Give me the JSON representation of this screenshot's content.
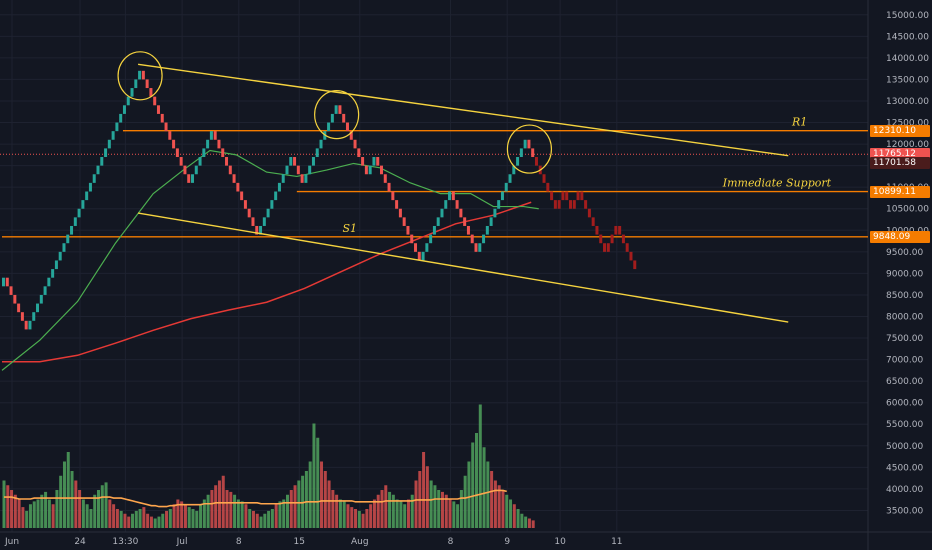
{
  "colors": {
    "background": "#131722",
    "grid": "#1e2230",
    "up": "#26a69a",
    "down": "#ef5350",
    "projection": "#a31d1d",
    "trendline": "#f5d33f",
    "level": "#f57c00",
    "ma_fast": "#4caf50",
    "ma_slow": "#e53935",
    "volume_up": "#4c9a5a",
    "volume_down": "#c94a4a",
    "volume_ma": "#ffa64d"
  },
  "chart_data": {
    "type": "renko-candlestick",
    "yaxis": {
      "min": 3000,
      "max": 15250,
      "ticks": [
        3500,
        4000,
        4500,
        5000,
        5500,
        6000,
        6500,
        7000,
        7500,
        8000,
        8500,
        9000,
        9500,
        10000,
        10500,
        11000,
        11500,
        12000,
        12500,
        13000,
        13500,
        14000,
        14500,
        15000
      ],
      "tick_labels": [
        "3500.00",
        "4000.00",
        "4500.00",
        "5000.00",
        "5500.00",
        "6000.00",
        "6500.00",
        "7000.00",
        "7500.00",
        "8000.00",
        "8500.00",
        "9000.00",
        "9500.00",
        "10000.00",
        "10500.00",
        "11000.00",
        "11500.00",
        "12000.00",
        "12500.00",
        "13000.00",
        "13500.00",
        "14000.00",
        "14500.00",
        "15000.00"
      ]
    },
    "xaxis": {
      "labels": [
        "Jun",
        "24",
        "13:30",
        "Jul",
        "8",
        "15",
        "Aug",
        "8",
        "9",
        "10",
        "11"
      ],
      "label_slots": [
        0,
        18,
        30,
        45,
        60,
        76,
        92,
        116,
        131,
        145,
        160
      ]
    },
    "bricks": [
      [
        8700,
        8900
      ],
      [
        8900,
        8700
      ],
      [
        8700,
        8500
      ],
      [
        8500,
        8300
      ],
      [
        8300,
        8100
      ],
      [
        8100,
        7900
      ],
      [
        7900,
        7700
      ],
      [
        7700,
        7900
      ],
      [
        7900,
        8100
      ],
      [
        8100,
        8300
      ],
      [
        8300,
        8500
      ],
      [
        8500,
        8700
      ],
      [
        8700,
        8900
      ],
      [
        8900,
        9100
      ],
      [
        9100,
        9300
      ],
      [
        9300,
        9500
      ],
      [
        9500,
        9700
      ],
      [
        9700,
        9900
      ],
      [
        9900,
        10100
      ],
      [
        10100,
        10300
      ],
      [
        10300,
        10500
      ],
      [
        10500,
        10700
      ],
      [
        10700,
        10900
      ],
      [
        10900,
        11100
      ],
      [
        11100,
        11300
      ],
      [
        11300,
        11500
      ],
      [
        11500,
        11700
      ],
      [
        11700,
        11900
      ],
      [
        11900,
        12100
      ],
      [
        12100,
        12300
      ],
      [
        12300,
        12500
      ],
      [
        12500,
        12700
      ],
      [
        12700,
        12900
      ],
      [
        12900,
        13100
      ],
      [
        13100,
        13300
      ],
      [
        13300,
        13500
      ],
      [
        13500,
        13700
      ],
      [
        13700,
        13500
      ],
      [
        13500,
        13300
      ],
      [
        13300,
        13100
      ],
      [
        13100,
        12900
      ],
      [
        12900,
        12700
      ],
      [
        12700,
        12500
      ],
      [
        12500,
        12300
      ],
      [
        12300,
        12100
      ],
      [
        12100,
        11900
      ],
      [
        11900,
        11700
      ],
      [
        11700,
        11500
      ],
      [
        11500,
        11300
      ],
      [
        11300,
        11100
      ],
      [
        11100,
        11300
      ],
      [
        11300,
        11500
      ],
      [
        11500,
        11700
      ],
      [
        11700,
        11900
      ],
      [
        11900,
        12100
      ],
      [
        12100,
        12300
      ],
      [
        12300,
        12100
      ],
      [
        12100,
        11900
      ],
      [
        11900,
        11700
      ],
      [
        11700,
        11500
      ],
      [
        11500,
        11300
      ],
      [
        11300,
        11100
      ],
      [
        11100,
        10900
      ],
      [
        10900,
        10700
      ],
      [
        10700,
        10500
      ],
      [
        10500,
        10300
      ],
      [
        10300,
        10100
      ],
      [
        10100,
        9900
      ],
      [
        9900,
        10100
      ],
      [
        10100,
        10300
      ],
      [
        10300,
        10500
      ],
      [
        10500,
        10700
      ],
      [
        10700,
        10900
      ],
      [
        10900,
        11100
      ],
      [
        11100,
        11300
      ],
      [
        11300,
        11500
      ],
      [
        11500,
        11700
      ],
      [
        11700,
        11500
      ],
      [
        11500,
        11300
      ],
      [
        11300,
        11100
      ],
      [
        11100,
        11300
      ],
      [
        11300,
        11500
      ],
      [
        11500,
        11700
      ],
      [
        11700,
        11900
      ],
      [
        11900,
        12100
      ],
      [
        12100,
        12300
      ],
      [
        12300,
        12500
      ],
      [
        12500,
        12700
      ],
      [
        12700,
        12900
      ],
      [
        12900,
        12700
      ],
      [
        12700,
        12500
      ],
      [
        12500,
        12300
      ],
      [
        12300,
        12100
      ],
      [
        12100,
        11900
      ],
      [
        11900,
        11700
      ],
      [
        11700,
        11500
      ],
      [
        11500,
        11300
      ],
      [
        11300,
        11500
      ],
      [
        11500,
        11700
      ],
      [
        11700,
        11500
      ],
      [
        11500,
        11300
      ],
      [
        11300,
        11100
      ],
      [
        11100,
        10900
      ],
      [
        10900,
        10700
      ],
      [
        10700,
        10500
      ],
      [
        10500,
        10300
      ],
      [
        10300,
        10100
      ],
      [
        10100,
        9900
      ],
      [
        9900,
        9700
      ],
      [
        9700,
        9500
      ],
      [
        9500,
        9300
      ],
      [
        9300,
        9500
      ],
      [
        9500,
        9700
      ],
      [
        9700,
        9900
      ],
      [
        9900,
        10100
      ],
      [
        10100,
        10300
      ],
      [
        10300,
        10500
      ],
      [
        10500,
        10700
      ],
      [
        10700,
        10900
      ],
      [
        10900,
        10700
      ],
      [
        10700,
        10500
      ],
      [
        10500,
        10300
      ],
      [
        10300,
        10100
      ],
      [
        10100,
        9900
      ],
      [
        9900,
        9700
      ],
      [
        9700,
        9500
      ],
      [
        9500,
        9700
      ],
      [
        9700,
        9900
      ],
      [
        9900,
        10100
      ],
      [
        10100,
        10300
      ],
      [
        10300,
        10500
      ],
      [
        10500,
        10700
      ],
      [
        10700,
        10900
      ],
      [
        10900,
        11100
      ],
      [
        11100,
        11300
      ],
      [
        11300,
        11500
      ],
      [
        11500,
        11700
      ],
      [
        11700,
        11900
      ],
      [
        11900,
        12100
      ],
      [
        12100,
        11900
      ],
      [
        11900,
        11700
      ]
    ],
    "projection": [
      [
        11700,
        11500
      ],
      [
        11500,
        11300
      ],
      [
        11300,
        11100
      ],
      [
        11100,
        10900
      ],
      [
        10900,
        10700
      ],
      [
        10700,
        10500
      ],
      [
        10500,
        10700
      ],
      [
        10700,
        10900
      ],
      [
        10900,
        10700
      ],
      [
        10700,
        10500
      ],
      [
        10500,
        10700
      ],
      [
        10700,
        10900
      ],
      [
        10900,
        10700
      ],
      [
        10700,
        10500
      ],
      [
        10500,
        10300
      ],
      [
        10300,
        10100
      ],
      [
        10100,
        9900
      ],
      [
        9900,
        9700
      ],
      [
        9700,
        9500
      ],
      [
        9500,
        9700
      ],
      [
        9700,
        9900
      ],
      [
        9900,
        10100
      ],
      [
        10100,
        9900
      ],
      [
        9900,
        9700
      ],
      [
        9700,
        9500
      ],
      [
        9500,
        9300
      ],
      [
        9300,
        9100
      ]
    ],
    "ma_fast": [
      [
        0,
        6750
      ],
      [
        10,
        7450
      ],
      [
        20,
        8350
      ],
      [
        30,
        9700
      ],
      [
        40,
        10850
      ],
      [
        48,
        11400
      ],
      [
        55,
        11850
      ],
      [
        62,
        11750
      ],
      [
        70,
        11350
      ],
      [
        78,
        11250
      ],
      [
        86,
        11400
      ],
      [
        93,
        11550
      ],
      [
        100,
        11450
      ],
      [
        108,
        11100
      ],
      [
        116,
        10850
      ],
      [
        124,
        10850
      ],
      [
        130,
        10550
      ],
      [
        138,
        10550
      ],
      [
        142,
        10500
      ]
    ],
    "ma_slow": [
      [
        0,
        6950
      ],
      [
        10,
        6950
      ],
      [
        20,
        7100
      ],
      [
        30,
        7380
      ],
      [
        40,
        7680
      ],
      [
        50,
        7950
      ],
      [
        60,
        8150
      ],
      [
        70,
        8330
      ],
      [
        80,
        8650
      ],
      [
        90,
        9050
      ],
      [
        100,
        9450
      ],
      [
        110,
        9800
      ],
      [
        120,
        10150
      ],
      [
        130,
        10350
      ],
      [
        140,
        10650
      ]
    ],
    "trendlines": [
      {
        "from": [
          36,
          13850
        ],
        "to": [
          208,
          11730
        ]
      },
      {
        "from": [
          36,
          10400
        ],
        "to": [
          208,
          7870
        ]
      }
    ],
    "levels": [
      {
        "value": 12310.1,
        "label": "12310.10",
        "x_start": 32,
        "line_style": "solid",
        "annotation": "R1",
        "annotation_slot": 211
      },
      {
        "value": 10899.11,
        "label": "10899.11",
        "x_start": 78,
        "line_style": "solid",
        "annotation": "Immediate Support",
        "annotation_slot": 205
      },
      {
        "value": 9848.09,
        "label": "9848.09",
        "x_start": 0,
        "line_style": "solid",
        "annotation": "S1",
        "annotation_slot": 92
      }
    ],
    "extra_price_tags": [
      {
        "value": 11765.12,
        "label": "11765.12",
        "color": "#ef5350"
      },
      {
        "value": 11701.58,
        "label": "11701.58",
        "color": "#4a1c1c"
      }
    ],
    "current_price": 11765.12,
    "circled_peaks": [
      {
        "slot": 36,
        "value": 13700
      },
      {
        "slot": 88,
        "value": 12800
      },
      {
        "slot": 139,
        "value": 12000
      }
    ],
    "volume": {
      "values": [
        50,
        45,
        40,
        35,
        30,
        22,
        18,
        25,
        28,
        30,
        35,
        38,
        30,
        25,
        40,
        55,
        70,
        80,
        60,
        50,
        40,
        30,
        25,
        20,
        35,
        40,
        45,
        48,
        30,
        25,
        20,
        18,
        15,
        12,
        15,
        18,
        20,
        22,
        15,
        12,
        10,
        12,
        15,
        18,
        20,
        25,
        30,
        28,
        25,
        22,
        20,
        18,
        25,
        30,
        35,
        40,
        45,
        50,
        55,
        40,
        38,
        35,
        30,
        28,
        25,
        20,
        18,
        15,
        12,
        15,
        18,
        20,
        25,
        28,
        30,
        35,
        40,
        45,
        50,
        55,
        60,
        70,
        110,
        95,
        70,
        60,
        50,
        40,
        35,
        30,
        28,
        25,
        22,
        20,
        18,
        15,
        20,
        25,
        30,
        35,
        40,
        45,
        38,
        35,
        30,
        28,
        25,
        30,
        35,
        50,
        60,
        80,
        65,
        50,
        45,
        40,
        38,
        35,
        30,
        28,
        25,
        40,
        55,
        70,
        90,
        100,
        130,
        85,
        70,
        60,
        50,
        45,
        40,
        35,
        30,
        25,
        20,
        15,
        12,
        10,
        8
      ],
      "up": [
        1,
        0,
        0,
        0,
        0,
        0,
        1,
        1,
        1,
        1,
        1,
        1,
        1,
        0,
        1,
        1,
        1,
        1,
        1,
        0,
        0,
        1,
        1,
        1,
        1,
        1,
        1,
        1,
        0,
        0,
        0,
        1,
        0,
        0,
        1,
        1,
        1,
        0,
        0,
        0,
        1,
        1,
        1,
        0,
        1,
        0,
        0,
        0,
        0,
        1,
        1,
        1,
        1,
        1,
        1,
        0,
        0,
        0,
        0,
        0,
        0,
        1,
        1,
        1,
        0,
        1,
        0,
        0,
        1,
        1,
        1,
        1,
        0,
        1,
        1,
        1,
        0,
        0,
        1,
        1,
        1,
        1,
        1,
        1,
        0,
        0,
        0,
        0,
        0,
        1,
        1,
        0,
        0,
        0,
        1,
        0,
        0,
        0,
        0,
        0,
        0,
        0,
        1,
        1,
        1,
        1,
        1,
        0,
        1,
        0,
        0,
        0,
        0,
        1,
        1,
        1,
        0,
        0,
        0,
        1,
        1,
        1,
        1,
        1,
        1,
        1,
        1,
        1,
        1,
        0,
        0,
        0,
        0,
        1,
        1,
        0,
        1,
        1,
        1,
        0,
        0
      ],
      "ma": [
        22,
        22,
        22,
        21,
        20,
        20,
        20,
        20,
        21,
        21,
        21,
        21,
        21,
        21,
        21,
        21,
        21,
        21,
        21,
        21,
        21,
        21,
        21,
        21,
        21,
        21,
        22,
        22,
        22,
        21,
        21,
        21,
        20,
        19,
        18,
        17,
        16,
        15,
        14,
        13,
        13,
        12,
        12,
        12,
        13,
        13,
        14,
        14,
        14,
        14,
        14,
        14,
        14,
        15,
        15,
        15,
        16,
        16,
        16,
        16,
        16,
        16,
        16,
        16,
        16,
        16,
        16,
        16,
        15,
        15,
        15,
        15,
        15,
        15,
        16,
        16,
        16,
        16,
        16,
        16,
        17,
        17,
        17,
        17,
        18,
        18,
        18,
        18,
        18,
        18,
        18,
        18,
        18,
        17,
        17,
        17,
        17,
        17,
        17,
        17,
        17,
        18,
        18,
        18,
        18,
        18,
        18,
        18,
        18,
        19,
        19,
        19,
        19,
        19,
        20,
        20,
        20,
        20,
        20,
        20,
        20,
        21,
        21,
        22,
        23,
        24,
        25,
        26,
        27,
        28,
        29,
        29,
        29,
        28
      ]
    }
  }
}
